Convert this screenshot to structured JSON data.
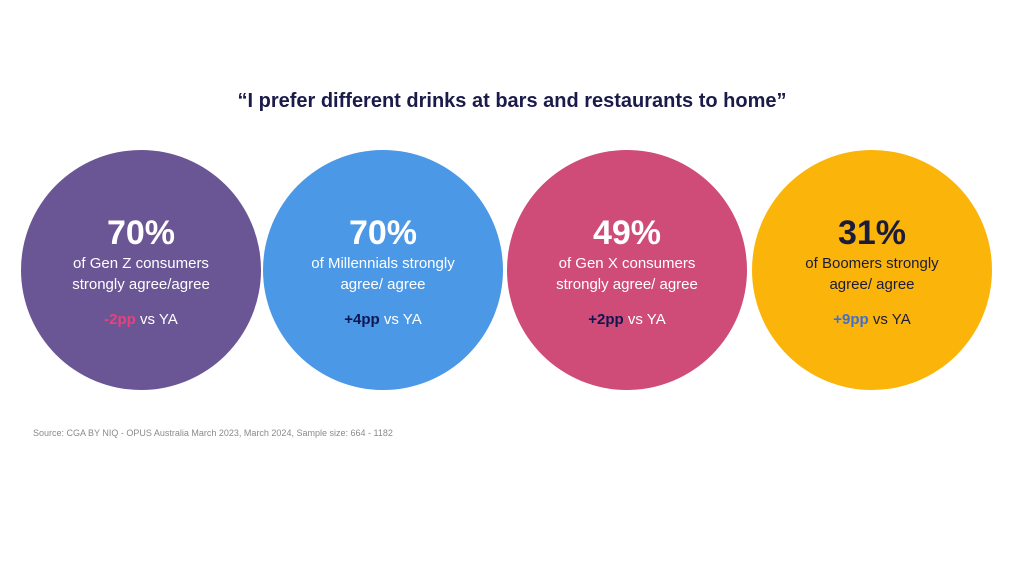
{
  "title": "“I prefer different drinks at bars and restaurants to home”",
  "circles": [
    {
      "percent": "70%",
      "description": "of Gen Z consumers strongly agree/agree",
      "delta": "-2pp",
      "suffix": " vs YA",
      "fill_color": "#6a5595",
      "text_color": "#ffffff",
      "delta_color": "#e8427c"
    },
    {
      "percent": "70%",
      "description": "of Millennials strongly agree/ agree",
      "delta": "+4pp",
      "suffix": " vs YA",
      "fill_color": "#4a98e6",
      "text_color": "#ffffff",
      "delta_color": "#0f1650"
    },
    {
      "percent": "49%",
      "description": "of Gen X consumers strongly agree/ agree",
      "delta": "+2pp",
      "suffix": " vs YA",
      "fill_color": "#cf4b78",
      "text_color": "#ffffff",
      "delta_color": "#0f1650"
    },
    {
      "percent": "31%",
      "description": "of Boomers strongly agree/ agree",
      "delta": "+9pp",
      "suffix": " vs YA",
      "fill_color": "#fbb40a",
      "text_color": "#1b1b3a",
      "delta_color": "#3f6fd0"
    }
  ],
  "source": "Source: CGA BY NIQ - OPUS Australia March 2023, March 2024, Sample size: 664 - 1182"
}
